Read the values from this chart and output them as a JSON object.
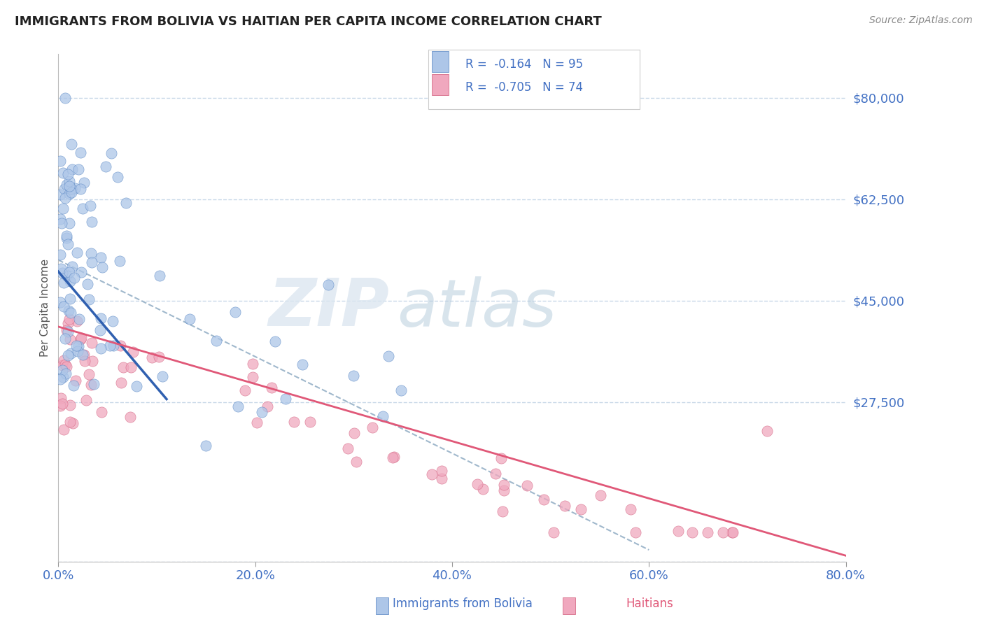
{
  "title": "IMMIGRANTS FROM BOLIVIA VS HAITIAN PER CAPITA INCOME CORRELATION CHART",
  "source": "Source: ZipAtlas.com",
  "ylabel": "Per Capita Income",
  "xlim": [
    0.0,
    0.8
  ],
  "ylim": [
    0,
    87500
  ],
  "ytick_vals": [
    0,
    27500,
    45000,
    62500,
    80000
  ],
  "ytick_labels": [
    "",
    "$27,500",
    "$45,000",
    "$62,500",
    "$80,000"
  ],
  "xtick_vals": [
    0.0,
    0.2,
    0.4,
    0.6,
    0.8
  ],
  "xtick_labels": [
    "0.0%",
    "20.0%",
    "40.0%",
    "60.0%",
    "80.0%"
  ],
  "background_color": "#ffffff",
  "grid_color": "#c8d8e8",
  "bolivia_color": "#adc6e8",
  "haiti_color": "#f0a8be",
  "bolivia_edge_color": "#5080c0",
  "haiti_edge_color": "#d05878",
  "bolivia_line_color": "#3060b0",
  "haiti_line_color": "#e05878",
  "dashed_line_color": "#a0b8cc",
  "tick_color": "#4472c4",
  "legend_r1": "R =  -0.164   N = 95",
  "legend_r2": "R =  -0.705   N = 74",
  "watermark_zip": "ZIP",
  "watermark_atlas": "atlas",
  "bottom_label1": "Immigrants from Bolivia",
  "bottom_label2": "Haitians",
  "bolivia_trend_x0": 0.0,
  "bolivia_trend_y0": 50000,
  "bolivia_trend_x1": 0.11,
  "bolivia_trend_y1": 28000,
  "haiti_trend_x0": 0.0,
  "haiti_trend_y0": 40500,
  "haiti_trend_x1": 0.8,
  "haiti_trend_y1": 1000,
  "dash_trend_x0": 0.0,
  "dash_trend_y0": 52000,
  "dash_trend_x1": 0.6,
  "dash_trend_y1": 2000
}
